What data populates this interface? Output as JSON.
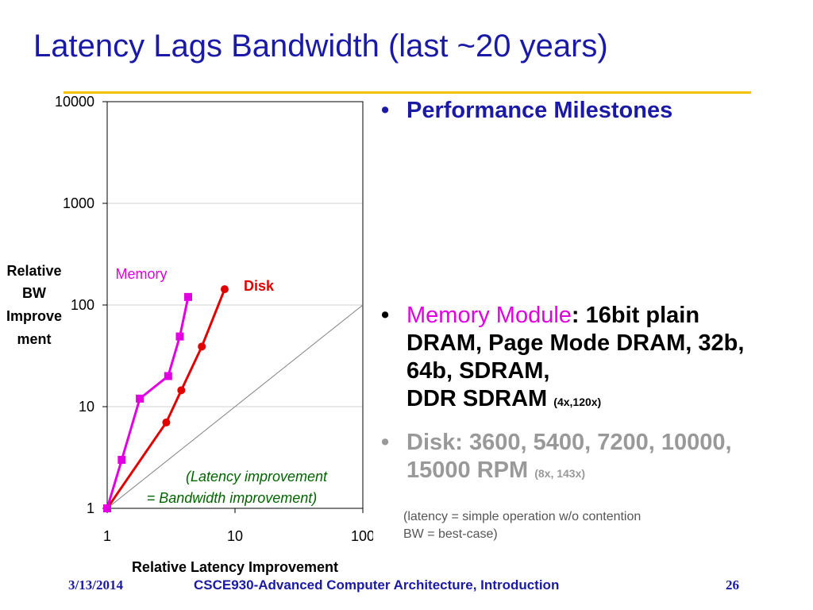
{
  "slide": {
    "title": "Latency Lags Bandwidth (last ~20 years)",
    "bullets": {
      "b1": {
        "bullet": "•",
        "text": "Performance Milestones"
      },
      "b2": {
        "bullet": "•",
        "label": "Memory Module",
        "colon": ":",
        "text_line1": " 16bit plain",
        "text_line2": "DRAM, Page Mode DRAM, 32b,",
        "text_line3": "64b, SDRAM,",
        "text_line4": "DDR SDRAM",
        "small": "(4x,120x)"
      },
      "b3": {
        "bullet": "•",
        "text_line1": "Disk: 3600, 5400, 7200, 10000,",
        "text_line2": "15000 RPM",
        "small": "(8x, 143x)"
      }
    },
    "note_line1": "(latency = simple operation w/o contention",
    "note_line2": "BW = best-case)",
    "footer": {
      "date": "3/13/2014",
      "course": "CSCE930-Advanced Computer Architecture, Introduction",
      "page": "26"
    }
  },
  "colors": {
    "title": "#1a1aa6",
    "memory": "#e000e0",
    "disk": "#e00000",
    "rule": "#f2c200",
    "diagonal": "#808080"
  },
  "chart_data": {
    "type": "line",
    "xscale": "log",
    "yscale": "log",
    "xlim": [
      1,
      100
    ],
    "ylim": [
      1,
      10000
    ],
    "xticks": [
      "1",
      "10",
      "100"
    ],
    "yticks": [
      "1",
      "10",
      "100",
      "1000",
      "10000"
    ],
    "xlabel": "Relative Latency Improvement",
    "ylabel_lines": [
      "Relative",
      "BW",
      "Improve",
      "ment"
    ],
    "grid": true,
    "series": [
      {
        "name": "Memory",
        "marker": "square",
        "x": [
          1.0,
          1.3,
          1.8,
          3.0,
          3.7,
          4.3
        ],
        "y": [
          1.0,
          3.0,
          12.0,
          20.0,
          49.0,
          120.0
        ]
      },
      {
        "name": "Disk",
        "marker": "circle",
        "x": [
          1.0,
          2.9,
          3.8,
          5.5,
          8.3
        ],
        "y": [
          1.0,
          7.0,
          14.5,
          39.0,
          143.0
        ]
      }
    ],
    "reference_line": {
      "x": [
        1,
        100
      ],
      "y": [
        1,
        100
      ]
    },
    "annotation_line1": "(Latency improvement",
    "annotation_line2": "= Bandwidth improvement)"
  }
}
